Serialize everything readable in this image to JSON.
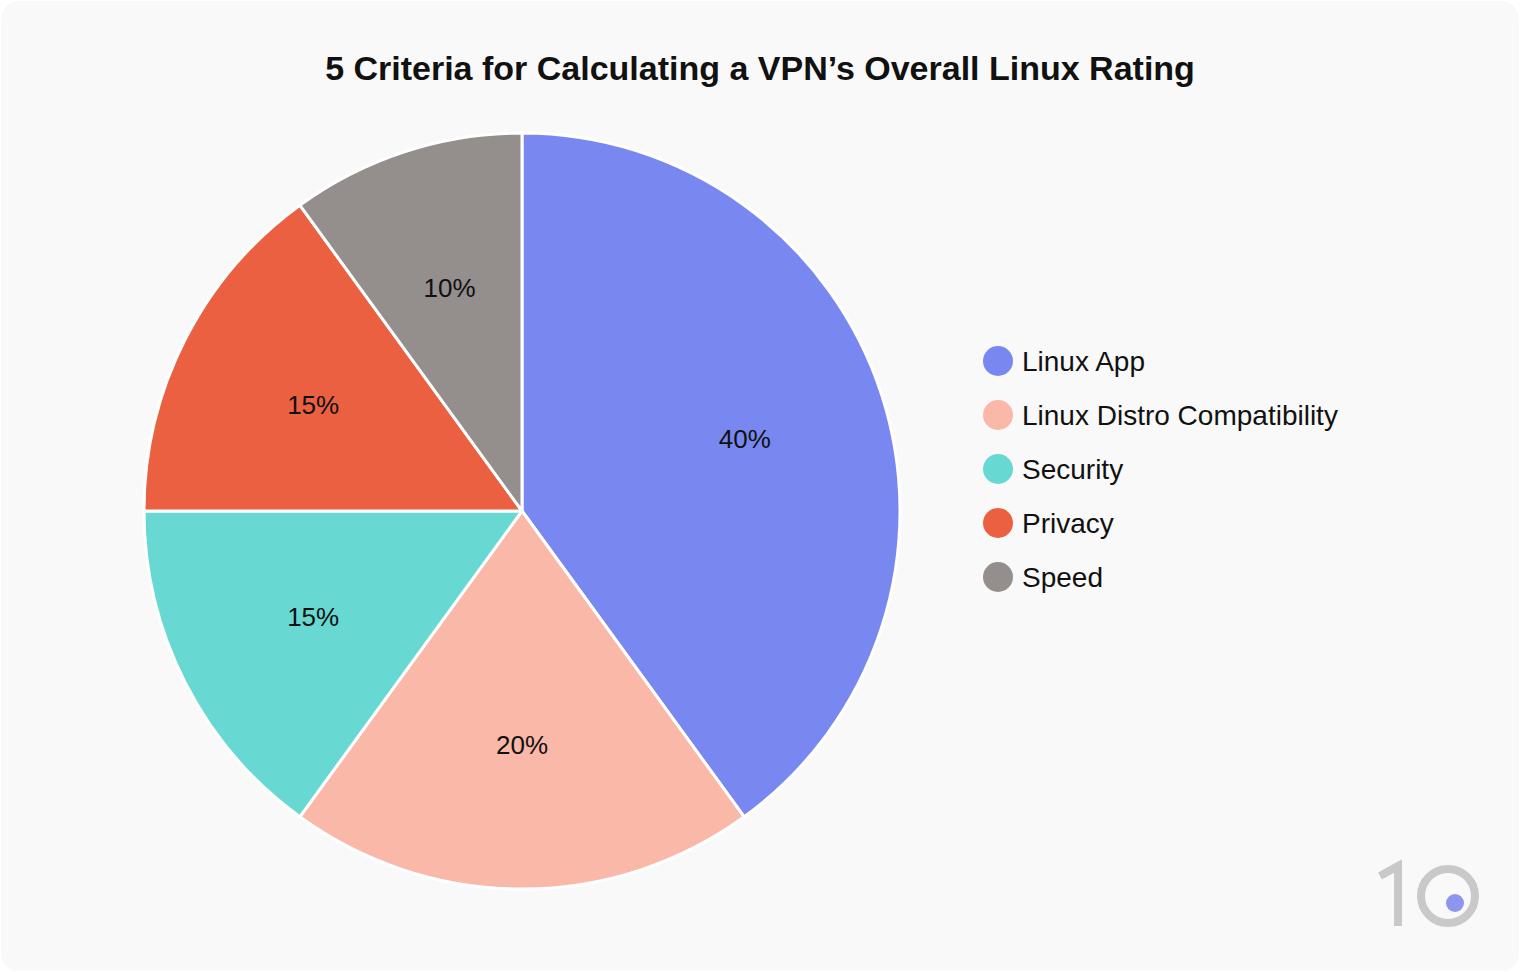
{
  "chart_data": {
    "type": "pie",
    "title": "5 Criteria for Calculating a VPN’s Overall Linux Rating",
    "categories": [
      "Linux App",
      "Linux Distro Compatibility",
      "Security",
      "Privacy",
      "Speed"
    ],
    "values": [
      40,
      20,
      15,
      15,
      10
    ],
    "value_labels": [
      "40%",
      "20%",
      "15%",
      "15%",
      "10%"
    ],
    "colors": [
      "#7888f0",
      "#f9b8a8",
      "#68d9d2",
      "#ea6040",
      "#948e8c"
    ],
    "data_labels": true,
    "legend": "right"
  }
}
